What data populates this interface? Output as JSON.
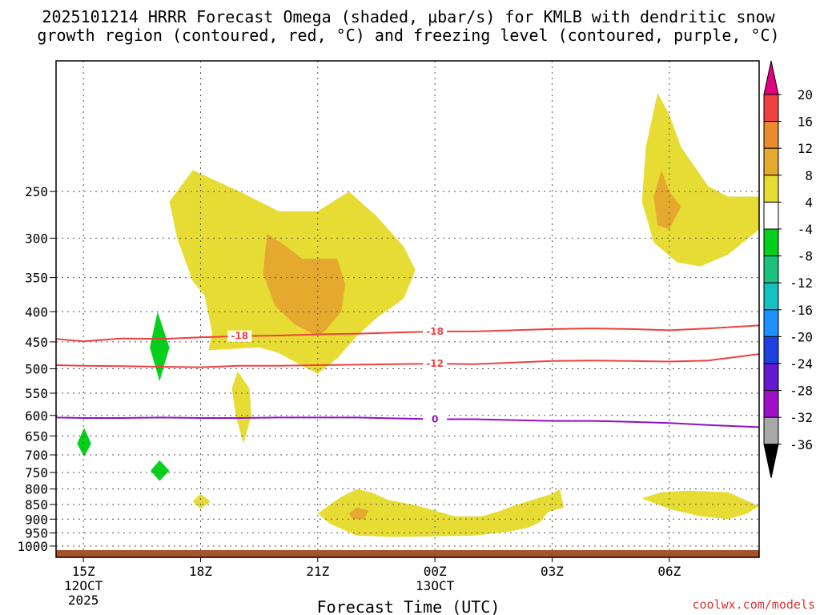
{
  "chart_data": {
    "type": "time-height cross-section",
    "title_line1": "2025101214 HRRR Forecast Omega (shaded, μbar/s) for KMLB with dendritic snow",
    "title_line2": "growth region (contoured, red, °C) and freezing level (contoured, purple, °C)",
    "xlabel": "Forecast Time (UTC)",
    "credit": "coolwx.com/models",
    "y_pressure_levels_hPa": [
      250,
      300,
      350,
      400,
      450,
      500,
      550,
      600,
      650,
      700,
      750,
      800,
      850,
      900,
      950,
      1000
    ],
    "x_range_hours": [
      -0.7,
      17.3
    ],
    "x_ticks": [
      {
        "hour": 0,
        "label": "15Z",
        "date1": "12OCT",
        "date2": "2025"
      },
      {
        "hour": 3,
        "label": "18Z"
      },
      {
        "hour": 6,
        "label": "21Z"
      },
      {
        "hour": 9,
        "label": "00Z",
        "date1": "13OCT"
      },
      {
        "hour": 12,
        "label": "03Z"
      },
      {
        "hour": 15,
        "label": "06Z"
      }
    ],
    "colorbar": {
      "labels": [
        "20",
        "16",
        "12",
        "8",
        "4",
        "-4",
        "-8",
        "-12",
        "-16",
        "-20",
        "-24",
        "-28",
        "-32",
        "-36"
      ],
      "colors": [
        "#e0007f",
        "#f04040",
        "#ec8a2e",
        "#e6a930",
        "#e6dc34",
        "#ffffff",
        "#06d01c",
        "#1ac27e",
        "#14c0c0",
        "#1e90ff",
        "#1e40e0",
        "#6418d0",
        "#a010c8",
        "#a8a8a8",
        "#000000"
      ]
    },
    "contours": [
      {
        "name": "dgz-minus-18",
        "label": "-18",
        "color": "#f04040",
        "points": [
          [
            -0.7,
            445
          ],
          [
            0,
            449
          ],
          [
            1,
            444
          ],
          [
            2,
            445
          ],
          [
            3,
            442
          ],
          [
            4,
            440
          ],
          [
            5,
            439
          ],
          [
            6,
            437
          ],
          [
            7,
            436
          ],
          [
            8,
            434
          ],
          [
            9,
            432
          ],
          [
            10,
            432
          ],
          [
            11,
            430
          ],
          [
            12,
            428
          ],
          [
            13,
            427
          ],
          [
            14,
            428
          ],
          [
            15,
            430
          ],
          [
            16,
            427
          ],
          [
            17.3,
            422
          ]
        ]
      },
      {
        "name": "dgz-minus-12",
        "label": "-12",
        "color": "#f04040",
        "points": [
          [
            -0.7,
            493
          ],
          [
            0,
            494
          ],
          [
            1,
            495
          ],
          [
            2,
            496
          ],
          [
            3,
            497
          ],
          [
            4,
            494
          ],
          [
            5,
            494
          ],
          [
            6,
            493
          ],
          [
            7,
            492
          ],
          [
            8,
            491
          ],
          [
            9,
            490
          ],
          [
            10,
            491
          ],
          [
            11,
            488
          ],
          [
            12,
            485
          ],
          [
            13,
            484
          ],
          [
            14,
            485
          ],
          [
            15,
            486
          ],
          [
            16,
            484
          ],
          [
            17.3,
            472
          ]
        ]
      },
      {
        "name": "freezing-level",
        "label": "0",
        "color": "#9010c8",
        "points": [
          [
            -0.7,
            605
          ],
          [
            0,
            606
          ],
          [
            1,
            606
          ],
          [
            2,
            605
          ],
          [
            3,
            606
          ],
          [
            4,
            606
          ],
          [
            5,
            605
          ],
          [
            6,
            605
          ],
          [
            7,
            605
          ],
          [
            8,
            607
          ],
          [
            9,
            609
          ],
          [
            10,
            609
          ],
          [
            11,
            611
          ],
          [
            12,
            613
          ],
          [
            13,
            613
          ],
          [
            14,
            615
          ],
          [
            15,
            618
          ],
          [
            16,
            623
          ],
          [
            17.3,
            628
          ]
        ]
      }
    ],
    "omega_regions": [
      {
        "name": "upper-yellow-cloud",
        "value_range": "4 to 8",
        "color": "#e6dc34",
        "points": [
          [
            2.8,
            230
          ],
          [
            4,
            250
          ],
          [
            5,
            270
          ],
          [
            6,
            270
          ],
          [
            6.8,
            250
          ],
          [
            7.5,
            275
          ],
          [
            8.2,
            310
          ],
          [
            8.5,
            340
          ],
          [
            8.2,
            380
          ],
          [
            7.5,
            410
          ],
          [
            7,
            440
          ],
          [
            6.5,
            480
          ],
          [
            6,
            510
          ],
          [
            5.5,
            490
          ],
          [
            5,
            470
          ],
          [
            4.5,
            460
          ],
          [
            3.2,
            465
          ],
          [
            3.3,
            435
          ],
          [
            3.1,
            375
          ],
          [
            2.8,
            355
          ],
          [
            2.4,
            300
          ],
          [
            2.2,
            260
          ]
        ]
      },
      {
        "name": "upper-orange-core",
        "value_range": "8 to 12",
        "color": "#e6a930",
        "points": [
          [
            4.7,
            295
          ],
          [
            5.2,
            310
          ],
          [
            5.6,
            325
          ],
          [
            6.5,
            325
          ],
          [
            6.7,
            360
          ],
          [
            6.6,
            400
          ],
          [
            6.2,
            430
          ],
          [
            6.0,
            440
          ],
          [
            5.4,
            420
          ],
          [
            4.9,
            390
          ],
          [
            4.6,
            345
          ]
        ]
      },
      {
        "name": "top-right-yellow",
        "value_range": "4 to 8",
        "color": "#e6dc34",
        "points": [
          [
            14.7,
            170
          ],
          [
            15,
            185
          ],
          [
            15.3,
            210
          ],
          [
            16,
            245
          ],
          [
            16.5,
            255
          ],
          [
            17.3,
            255
          ],
          [
            17.3,
            290
          ],
          [
            16.5,
            320
          ],
          [
            15.8,
            335
          ],
          [
            15.2,
            330
          ],
          [
            14.6,
            305
          ],
          [
            14.3,
            260
          ],
          [
            14.4,
            210
          ]
        ]
      },
      {
        "name": "top-right-orange",
        "value_range": "8 to 12",
        "color": "#e6a930",
        "points": [
          [
            14.8,
            230
          ],
          [
            15,
            250
          ],
          [
            15.3,
            265
          ],
          [
            15.0,
            290
          ],
          [
            14.7,
            285
          ],
          [
            14.6,
            255
          ]
        ]
      },
      {
        "name": "mid-yellow-streak",
        "value_range": "4 to 8",
        "color": "#e6dc34",
        "points": [
          [
            3.95,
            505
          ],
          [
            4.25,
            540
          ],
          [
            4.3,
            600
          ],
          [
            4.1,
            670
          ],
          [
            3.9,
            600
          ],
          [
            3.8,
            540
          ]
        ]
      },
      {
        "name": "low-yellow-band-left",
        "value_range": "4 to 8",
        "color": "#e6dc34",
        "points": [
          [
            6,
            880
          ],
          [
            6.6,
            825
          ],
          [
            7,
            800
          ],
          [
            7.4,
            812
          ],
          [
            7.8,
            835
          ],
          [
            8.5,
            852
          ],
          [
            9,
            870
          ],
          [
            9.5,
            890
          ],
          [
            10.2,
            890
          ],
          [
            10.7,
            870
          ],
          [
            11,
            855
          ],
          [
            11.5,
            835
          ],
          [
            12,
            815
          ],
          [
            12.2,
            800
          ],
          [
            12.3,
            860
          ],
          [
            11.9,
            875
          ],
          [
            11.7,
            910
          ],
          [
            11.4,
            930
          ],
          [
            10.9,
            945
          ],
          [
            10,
            960
          ],
          [
            8,
            965
          ],
          [
            7,
            960
          ],
          [
            6.3,
            915
          ]
        ]
      },
      {
        "name": "low-orange-spot",
        "value_range": "8 to 12",
        "color": "#e6a930",
        "points": [
          [
            7.0,
            860
          ],
          [
            7.3,
            870
          ],
          [
            7.2,
            900
          ],
          [
            6.9,
            900
          ],
          [
            6.8,
            880
          ]
        ]
      },
      {
        "name": "low-yellow-right",
        "value_range": "4 to 8",
        "color": "#e6dc34",
        "points": [
          [
            14.3,
            830
          ],
          [
            14.8,
            810
          ],
          [
            15.5,
            805
          ],
          [
            16.5,
            810
          ],
          [
            17.3,
            855
          ],
          [
            17,
            880
          ],
          [
            16.5,
            900
          ],
          [
            15.8,
            890
          ],
          [
            15,
            865
          ]
        ]
      },
      {
        "name": "low-yellow-blob-18z",
        "value_range": "4 to 8",
        "color": "#e6dc34",
        "points": [
          [
            2.8,
            840
          ],
          [
            3.0,
            815
          ],
          [
            3.25,
            840
          ],
          [
            3.0,
            865
          ]
        ]
      },
      {
        "name": "green-blob-upper",
        "value_range": "-4 to -8",
        "color": "#06d01c",
        "points": [
          [
            1.9,
            400
          ],
          [
            2.2,
            460
          ],
          [
            1.95,
            525
          ],
          [
            1.7,
            460
          ]
        ]
      },
      {
        "name": "green-blob-mid",
        "value_range": "-4 to -8",
        "color": "#06d01c",
        "points": [
          [
            0.02,
            630
          ],
          [
            0.2,
            670
          ],
          [
            0.02,
            705
          ],
          [
            -0.16,
            670
          ]
        ]
      },
      {
        "name": "green-blob-lower",
        "value_range": "-4 to -8",
        "color": "#06d01c",
        "points": [
          [
            1.95,
            715
          ],
          [
            2.2,
            745
          ],
          [
            1.95,
            775
          ],
          [
            1.72,
            745
          ]
        ]
      }
    ],
    "terrain": {
      "name": "surface",
      "color": "#a6522a"
    }
  }
}
